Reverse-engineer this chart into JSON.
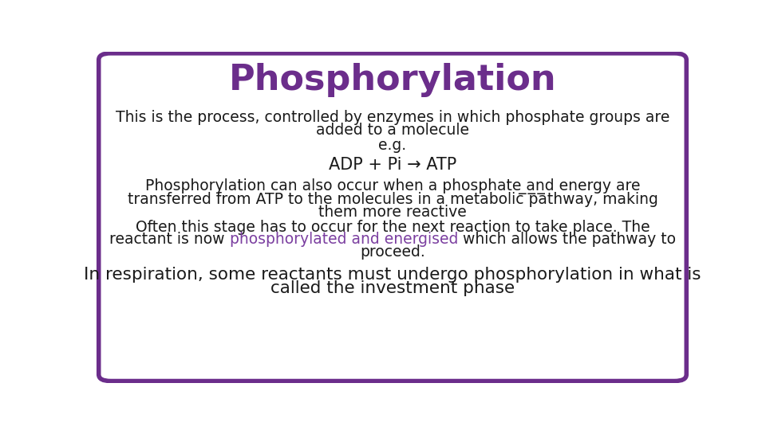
{
  "title": "Phosphorylation",
  "title_color": "#6B2D8B",
  "title_fontsize": 32,
  "border_color": "#6B2D8B",
  "border_linewidth": 4,
  "background_color": "#FFFFFF",
  "text_color": "#1a1a1a",
  "purple_color": "#7B3FA0",
  "body_fontsize": 13.5,
  "adp_fontsize": 15,
  "large_fontsize": 15.5,
  "line1": "This is the process, controlled by enzymes in which phosphate groups are",
  "line2": "added to a molecule",
  "line3": "e.g.",
  "line4": "ADP + Pi → ATP",
  "line5": "Phosphorylation can also occur when a phosphate ̲a̲n̲d energy are",
  "line6": "transferred from ATP to the molecules in a metabolic pathway, making",
  "line7": "them more reactive",
  "line8": "Often this stage has to occur for the next reaction to take place. The",
  "line9_prefix": "reactant is now ",
  "line9_purple": "phosphorylated and energised",
  "line9_suffix": " which allows the pathway to",
  "line10": "proceed.",
  "line11": "In respiration, some reactants must undergo phosphorylation in what is",
  "line12": "called the investment phase"
}
